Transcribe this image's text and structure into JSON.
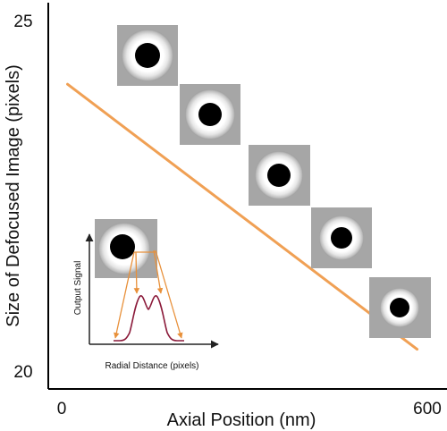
{
  "chart_data": {
    "type": "line",
    "xlabel": "Axial Position (nm)",
    "ylabel": "Size of Defocused Image (pixels)",
    "x_ticks": [
      "0",
      "600"
    ],
    "y_ticks": [
      "25",
      "20"
    ],
    "xlim": [
      0,
      600
    ],
    "ylim": [
      20,
      25
    ],
    "grid": false,
    "series": [
      {
        "color": "#F0A054",
        "x": [
          29,
          555
        ],
        "y": [
          24.1,
          20.3
        ]
      }
    ],
    "inset": {
      "type": "line",
      "xlabel": "Radial Distance (pixels)",
      "ylabel": "Output Signal",
      "description_color": "#8B1A3A",
      "arrow_color": "#E8903A"
    },
    "images": {
      "count": 5,
      "background": "#A6A6A6",
      "ring_color": "#FFFFFF",
      "spot_color": "#000000"
    }
  }
}
